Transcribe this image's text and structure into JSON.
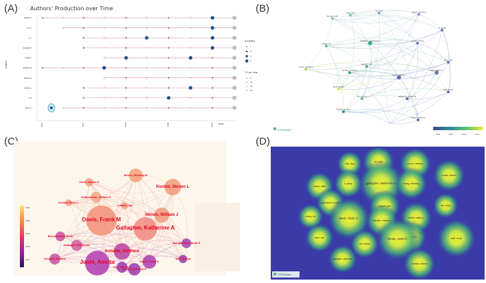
{
  "panels": {
    "a": {
      "letter": "(A)",
      "title": "Authors' Production over Time",
      "y_axis_label": "Author",
      "x_axis_label": "Year",
      "authors": [
        "WANG Y",
        "LIU Y",
        "LI Y",
        "ZHANG Y",
        "CHEN Y",
        "ZHANG H",
        "WANG X",
        "WANG L",
        "LI X",
        "ZHAO J"
      ],
      "years": [
        "2014",
        "2016",
        "2018",
        "2020",
        "2022"
      ],
      "legend_articles_title": "N.Articles",
      "legend_articles": [
        "1",
        "2",
        "3",
        "4"
      ],
      "legend_tc_title": "TC per Year",
      "legend_tc": [
        "5",
        "10",
        "15",
        "20"
      ],
      "line_color": "#e8a0a6",
      "dot_color": "#1f4e8c"
    },
    "b": {
      "letter": "(B)",
      "watermark": "VOSviewer",
      "colorbar_ticks": [
        "2018",
        "2019",
        "2020",
        "2021"
      ],
      "nodes": [
        {
          "label": "zhao, jing"
        },
        {
          "label": "liu, ying"
        },
        {
          "label": "wang, xiaoming"
        },
        {
          "label": "kumar, ankit"
        },
        {
          "label": "li, qiang"
        },
        {
          "label": "gallagher, katherine a."
        },
        {
          "label": "zhang, xin"
        },
        {
          "label": "kunkel, steven"
        },
        {
          "label": "chen, wei"
        },
        {
          "label": "moore, bethany"
        },
        {
          "label": "nguyen, anh"
        },
        {
          "label": "davis, frank m."
        },
        {
          "label": "schaller, matthew"
        },
        {
          "label": "henke, peter k."
        },
        {
          "label": "joshi, amrita"
        },
        {
          "label": "obi, andrea"
        },
        {
          "label": "wolf, sonja"
        },
        {
          "label": "gallagher, katherine"
        },
        {
          "label": "kimball, andrew"
        },
        {
          "label": "melvin, william j."
        }
      ]
    },
    "c": {
      "letter": "(C)",
      "colorbar_ticks": [
        "2021",
        "2020",
        "2019",
        "2018",
        "2017"
      ],
      "nodes": [
        {
          "label": "Moore, Bethany B"
        },
        {
          "label": "Kunkel, Steven L"
        },
        {
          "label": "Joshi, Amrita D"
        },
        {
          "label": "Gudjonsson, Johann E"
        },
        {
          "label": "Kunkel, Steve L"
        },
        {
          "label": "Lukacs, Jay"
        },
        {
          "label": "Davis, Frank M"
        },
        {
          "label": "Melvin, William J"
        },
        {
          "label": "Gallagher, Katherine A"
        },
        {
          "label": "Boniakowski, Anna"
        },
        {
          "label": "Gallagher, Katherine"
        },
        {
          "label": "Schaller, Matthew"
        },
        {
          "label": "Kimball, Andrew"
        },
        {
          "label": "Henke, Peter K"
        },
        {
          "label": "Obi, Andrea T"
        },
        {
          "label": "Joshi, Amrita"
        },
        {
          "label": "Kimball, Andrew S"
        },
        {
          "label": "Boniakowski, Anna E"
        },
        {
          "label": "Wolf, Sonja"
        }
      ]
    },
    "d": {
      "letter": "(D)",
      "watermark": "VOSviewer",
      "nodes": [
        {
          "label": "zhao, jing"
        },
        {
          "label": "liu, ying"
        },
        {
          "label": "moore, bethany"
        },
        {
          "label": "kumar, ankit"
        },
        {
          "label": "kunkel, steven"
        },
        {
          "label": "li, qiang"
        },
        {
          "label": "gallagher, katherine a."
        },
        {
          "label": "wang, xiaoming"
        },
        {
          "label": "gudjonsson, johann"
        },
        {
          "label": "nguyen, anh"
        },
        {
          "label": "kim, sung"
        },
        {
          "label": "zhang, xin"
        },
        {
          "label": "schaller, matthew"
        },
        {
          "label": "davis, frank m."
        },
        {
          "label": "melvin, william j."
        },
        {
          "label": "chen, wei"
        },
        {
          "label": "joshi, amrita"
        },
        {
          "label": "obi, andrea"
        },
        {
          "label": "henke, peter k."
        },
        {
          "label": "wolf, sonja"
        },
        {
          "label": "gallagher, katherine"
        },
        {
          "label": "kimball, andrew"
        }
      ]
    }
  }
}
